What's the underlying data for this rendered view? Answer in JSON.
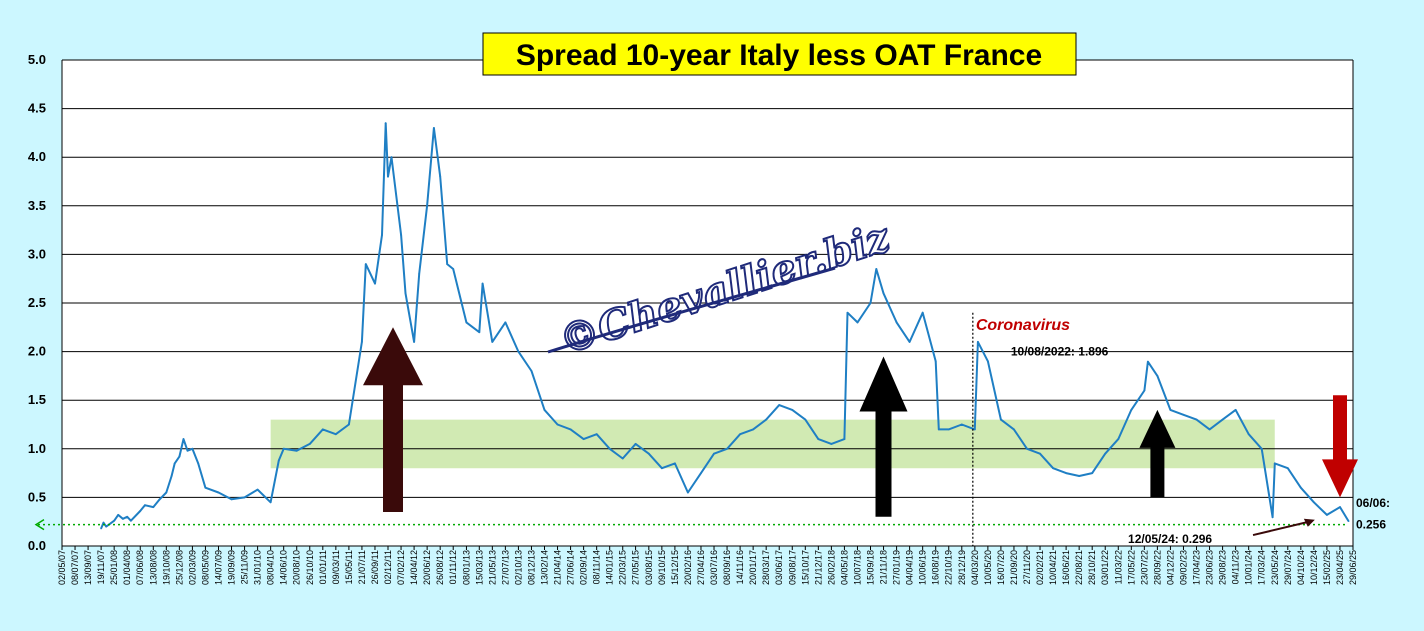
{
  "colors": {
    "background": "#ccf7ff",
    "plot_background": "#ffffff",
    "line": "#1f7fc4",
    "band": "#c9e6a6",
    "arrow_dark": "#3a0a0a",
    "arrow_black": "#000000",
    "arrow_red": "#c00000",
    "title_box": "#ffff00",
    "coronavirus": "#c00000",
    "dotted_line": "#00aa00"
  },
  "chart_data": {
    "type": "line",
    "title": "Spread 10-year Italy less OAT France",
    "xlabel": "",
    "ylabel": "",
    "ylim": [
      0,
      5
    ],
    "yticks": [
      "0.0",
      "0.5",
      "1.0",
      "1.5",
      "2.0",
      "2.5",
      "3.0",
      "3.5",
      "4.0",
      "4.5",
      "5.0"
    ],
    "grid": true,
    "x_tick_labels": [
      "02/05/07",
      "08/07/07",
      "13/09/07",
      "19/11/07",
      "25/01/08",
      "01/04/08",
      "07/06/08",
      "13/08/08",
      "19/10/08",
      "25/12/08",
      "02/03/09",
      "08/05/09",
      "14/07/09",
      "19/09/09",
      "25/11/09",
      "31/01/10",
      "08/04/10",
      "14/06/10",
      "20/08/10",
      "26/10/10",
      "01/01/11",
      "09/03/11",
      "15/05/11",
      "21/07/11",
      "26/09/11",
      "02/12/11",
      "07/02/12",
      "14/04/12",
      "20/06/12",
      "26/08/12",
      "01/11/12",
      "08/01/13",
      "15/03/13",
      "21/05/13",
      "27/07/13",
      "02/10/13",
      "08/12/13",
      "13/02/14",
      "21/04/14",
      "27/06/14",
      "02/09/14",
      "08/11/14",
      "14/01/15",
      "22/03/15",
      "27/05/15",
      "03/08/15",
      "09/10/15",
      "15/12/15",
      "20/02/16",
      "27/04/16",
      "03/07/16",
      "08/09/16",
      "14/11/16",
      "20/01/17",
      "28/03/17",
      "03/06/17",
      "09/08/17",
      "15/10/17",
      "21/12/17",
      "26/02/18",
      "04/05/18",
      "10/07/18",
      "15/09/18",
      "21/11/18",
      "27/01/19",
      "04/04/19",
      "10/06/19",
      "16/08/19",
      "22/10/19",
      "28/12/19",
      "04/03/20",
      "10/05/20",
      "16/07/20",
      "21/09/20",
      "27/11/20",
      "02/02/21",
      "10/04/21",
      "16/06/21",
      "22/08/21",
      "28/10/21",
      "03/01/22",
      "11/03/22",
      "17/05/22",
      "23/07/22",
      "28/09/22",
      "04/12/22",
      "09/02/23",
      "17/04/23",
      "23/06/23",
      "29/08/23",
      "04/11/23",
      "10/01/24",
      "17/03/24",
      "23/05/24",
      "29/07/24",
      "04/10/24",
      "10/12/24",
      "15/02/25",
      "23/04/25",
      "29/06/25"
    ],
    "series": [
      {
        "points": [
          [
            "19/11/07",
            0.18
          ],
          [
            "01/12/07",
            0.24
          ],
          [
            "15/12/07",
            0.2
          ],
          [
            "25/01/08",
            0.26
          ],
          [
            "15/02/08",
            0.32
          ],
          [
            "10/03/08",
            0.28
          ],
          [
            "01/04/08",
            0.3
          ],
          [
            "20/04/08",
            0.26
          ],
          [
            "07/06/08",
            0.36
          ],
          [
            "01/07/08",
            0.42
          ],
          [
            "13/08/08",
            0.4
          ],
          [
            "15/09/08",
            0.48
          ],
          [
            "19/10/08",
            0.55
          ],
          [
            "15/11/08",
            0.72
          ],
          [
            "01/12/08",
            0.85
          ],
          [
            "25/12/08",
            0.92
          ],
          [
            "15/01/09",
            1.1
          ],
          [
            "05/02/09",
            0.98
          ],
          [
            "02/03/09",
            1.0
          ],
          [
            "01/04/09",
            0.85
          ],
          [
            "08/05/09",
            0.6
          ],
          [
            "14/07/09",
            0.55
          ],
          [
            "19/09/09",
            0.48
          ],
          [
            "25/11/09",
            0.5
          ],
          [
            "31/01/10",
            0.58
          ],
          [
            "08/04/10",
            0.45
          ],
          [
            "20/05/10",
            0.88
          ],
          [
            "14/06/10",
            1.0
          ],
          [
            "20/08/10",
            0.98
          ],
          [
            "26/10/10",
            1.05
          ],
          [
            "01/01/11",
            1.2
          ],
          [
            "09/03/11",
            1.15
          ],
          [
            "15/05/11",
            1.25
          ],
          [
            "21/07/11",
            2.1
          ],
          [
            "10/08/11",
            2.9
          ],
          [
            "26/09/11",
            2.7
          ],
          [
            "01/11/11",
            3.2
          ],
          [
            "20/11/11",
            4.35
          ],
          [
            "02/12/11",
            3.8
          ],
          [
            "20/12/11",
            4.0
          ],
          [
            "07/02/12",
            3.2
          ],
          [
            "01/03/12",
            2.6
          ],
          [
            "14/04/12",
            2.1
          ],
          [
            "10/05/12",
            2.8
          ],
          [
            "20/06/12",
            3.5
          ],
          [
            "25/07/12",
            4.3
          ],
          [
            "26/08/12",
            3.8
          ],
          [
            "01/10/12",
            2.9
          ],
          [
            "01/11/12",
            2.85
          ],
          [
            "08/01/13",
            2.3
          ],
          [
            "15/03/13",
            2.2
          ],
          [
            "01/04/13",
            2.7
          ],
          [
            "21/05/13",
            2.1
          ],
          [
            "27/07/13",
            2.3
          ],
          [
            "02/10/13",
            2.0
          ],
          [
            "08/12/13",
            1.8
          ],
          [
            "13/02/14",
            1.4
          ],
          [
            "21/04/14",
            1.25
          ],
          [
            "27/06/14",
            1.2
          ],
          [
            "02/09/14",
            1.1
          ],
          [
            "08/11/14",
            1.15
          ],
          [
            "14/01/15",
            1.0
          ],
          [
            "22/03/15",
            0.9
          ],
          [
            "27/05/15",
            1.05
          ],
          [
            "03/08/15",
            0.95
          ],
          [
            "09/10/15",
            0.8
          ],
          [
            "15/12/15",
            0.85
          ],
          [
            "20/02/16",
            0.55
          ],
          [
            "27/04/16",
            0.75
          ],
          [
            "03/07/16",
            0.95
          ],
          [
            "08/09/16",
            1.0
          ],
          [
            "14/11/16",
            1.15
          ],
          [
            "20/01/17",
            1.2
          ],
          [
            "28/03/17",
            1.3
          ],
          [
            "03/06/17",
            1.45
          ],
          [
            "09/08/17",
            1.4
          ],
          [
            "15/10/17",
            1.3
          ],
          [
            "21/12/17",
            1.1
          ],
          [
            "26/02/18",
            1.05
          ],
          [
            "04/05/18",
            1.1
          ],
          [
            "20/05/18",
            2.4
          ],
          [
            "10/07/18",
            2.3
          ],
          [
            "15/09/18",
            2.5
          ],
          [
            "15/10/18",
            2.85
          ],
          [
            "21/11/18",
            2.6
          ],
          [
            "27/01/19",
            2.3
          ],
          [
            "04/04/19",
            2.1
          ],
          [
            "10/06/19",
            2.4
          ],
          [
            "16/08/19",
            1.9
          ],
          [
            "01/09/19",
            1.2
          ],
          [
            "22/10/19",
            1.2
          ],
          [
            "28/12/19",
            1.25
          ],
          [
            "04/03/20",
            1.2
          ],
          [
            "20/03/20",
            2.1
          ],
          [
            "10/05/20",
            1.9
          ],
          [
            "16/07/20",
            1.3
          ],
          [
            "21/09/20",
            1.2
          ],
          [
            "27/11/20",
            1.0
          ],
          [
            "02/02/21",
            0.95
          ],
          [
            "10/04/21",
            0.8
          ],
          [
            "16/06/21",
            0.75
          ],
          [
            "22/08/21",
            0.72
          ],
          [
            "28/10/21",
            0.75
          ],
          [
            "03/01/22",
            0.95
          ],
          [
            "11/03/22",
            1.1
          ],
          [
            "17/05/22",
            1.4
          ],
          [
            "23/07/22",
            1.6
          ],
          [
            "10/08/22",
            1.896
          ],
          [
            "28/09/22",
            1.75
          ],
          [
            "04/12/22",
            1.4
          ],
          [
            "09/02/23",
            1.35
          ],
          [
            "17/04/23",
            1.3
          ],
          [
            "23/06/23",
            1.2
          ],
          [
            "29/08/23",
            1.3
          ],
          [
            "04/11/23",
            1.4
          ],
          [
            "10/01/24",
            1.15
          ],
          [
            "17/03/24",
            1.0
          ],
          [
            "23/05/24",
            0.85
          ],
          [
            "29/07/24",
            0.8
          ],
          [
            "04/10/24",
            0.6
          ],
          [
            "10/12/24",
            0.45
          ],
          [
            "15/02/25",
            0.32
          ],
          [
            "23/04/25",
            0.4
          ],
          [
            "12/05/24",
            0.296
          ],
          [
            "06/06/25",
            0.256
          ]
        ]
      }
    ],
    "reference_line": 0.22,
    "band": {
      "from": 0.8,
      "to": 1.3,
      "x_from": "08/04/10",
      "x_to": "23/05/24"
    }
  },
  "annotations": {
    "watermark": "©Chevallier.biz",
    "coronavirus": "Coronavirus",
    "peak_label": "10/08/2022: 1.896",
    "low_label": "12/05/24: 0.296",
    "last_date": "06/06:",
    "last_value": "0.256"
  },
  "arrows": [
    {
      "direction": "up",
      "color_key": "arrow_dark",
      "at": "02/12/11",
      "y_from": 0.35,
      "y_to": 2.25
    },
    {
      "direction": "up",
      "color_key": "arrow_black",
      "at": "21/11/18",
      "y_from": 0.3,
      "y_to": 1.95
    },
    {
      "direction": "up",
      "color_key": "arrow_black",
      "at": "28/09/22",
      "y_from": 0.5,
      "y_to": 1.4
    },
    {
      "direction": "down",
      "color_key": "arrow_red",
      "at": "23/04/25",
      "y_from": 1.55,
      "y_to": 0.5
    }
  ]
}
